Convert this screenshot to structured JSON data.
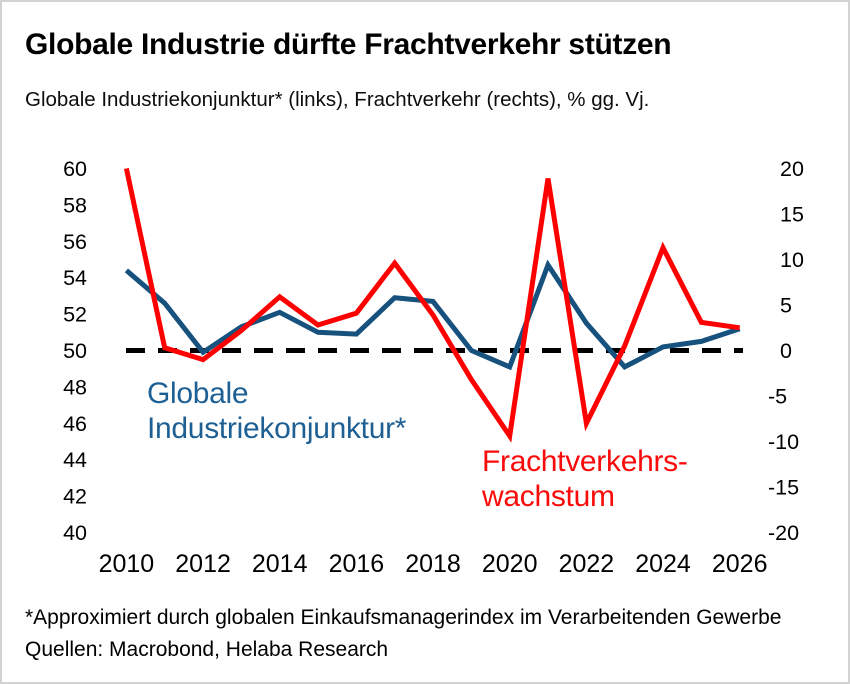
{
  "header": {
    "title": "Globale Industrie dürfte Frachtverkehr stützen",
    "subtitle": "Globale Industriekonjunktur* (links), Frachtverkehr (rechts), % gg. Vj."
  },
  "footer": {
    "footnote": "*Approximiert durch globalen Einkaufsmanagerindex im Verarbeitenden Gewerbe",
    "source": "Quellen: Macrobond, Helaba Research"
  },
  "chart_data": {
    "type": "line",
    "title": "Globale Industrie dürfte Frachtverkehr stützen",
    "x": [
      2010,
      2011,
      2012,
      2013,
      2014,
      2015,
      2016,
      2017,
      2018,
      2019,
      2020,
      2021,
      2022,
      2023,
      2024,
      2025,
      2026
    ],
    "series": [
      {
        "name": "Globale Industriekonjunktur*",
        "axis": "left",
        "color": "#17517e",
        "label_color": "#1e6094",
        "annotation": "Globale\nIndustriekonjunktur*",
        "values": [
          54.4,
          52.6,
          49.9,
          51.3,
          52.1,
          51.0,
          50.9,
          52.9,
          52.7,
          50.0,
          49.1,
          54.7,
          51.5,
          49.1,
          50.2,
          50.5,
          51.2
        ]
      },
      {
        "name": "Frachtverkehrswachstum",
        "axis": "right",
        "color": "#fe0000",
        "label_color": "#fb0a0a",
        "annotation": "Frachtverkehrs-\nwachstum",
        "values": [
          20.0,
          0.3,
          -1.0,
          2.2,
          5.9,
          2.8,
          4.1,
          9.6,
          3.9,
          -3.2,
          -9.4,
          18.9,
          -8.0,
          0.5,
          11.3,
          3.1,
          2.5
        ]
      }
    ],
    "left_axis": {
      "ticks": [
        60,
        58,
        56,
        54,
        52,
        50,
        48,
        46,
        44,
        42,
        40
      ],
      "range": [
        40,
        60
      ]
    },
    "right_axis": {
      "ticks": [
        20,
        15,
        10,
        5,
        0,
        -5,
        -10,
        -15,
        -20
      ],
      "range": [
        -20,
        20
      ]
    },
    "x_axis": {
      "ticks": [
        2010,
        2012,
        2014,
        2016,
        2018,
        2020,
        2022,
        2024,
        2026
      ],
      "range": [
        2010,
        2026
      ]
    },
    "baseline": {
      "left_value": 50,
      "right_value": 0,
      "style": "dashed",
      "color": "#000000"
    },
    "grid": false,
    "legend": "inline-annotations"
  }
}
